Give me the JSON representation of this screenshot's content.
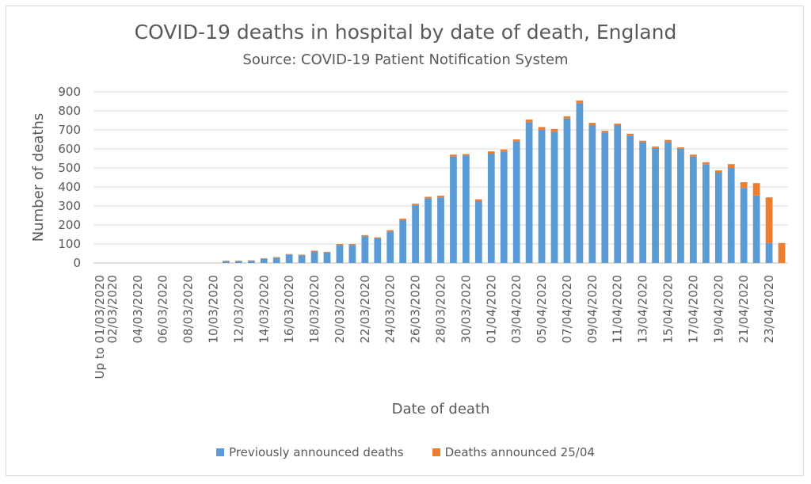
{
  "chart_data": {
    "type": "bar",
    "stacked": true,
    "title": "COVID-19 deaths in hospital by date of death, England",
    "subtitle": "Source: COVID-19 Patient Notification System",
    "xlabel": "Date of death",
    "ylabel": "Number of deaths",
    "ylim": [
      0,
      900
    ],
    "yticks": [
      0,
      100,
      200,
      300,
      400,
      500,
      600,
      700,
      800,
      900
    ],
    "grid": true,
    "legend_position": "bottom",
    "categories": [
      "Up to  01/03/2020",
      "02/03/2020",
      "03/03/2020",
      "04/03/2020",
      "05/03/2020",
      "06/03/2020",
      "07/03/2020",
      "08/03/2020",
      "09/03/2020",
      "10/03/2020",
      "11/03/2020",
      "12/03/2020",
      "13/03/2020",
      "14/03/2020",
      "15/03/2020",
      "16/03/2020",
      "17/03/2020",
      "18/03/2020",
      "19/03/2020",
      "20/03/2020",
      "21/03/2020",
      "22/03/2020",
      "23/03/2020",
      "24/03/2020",
      "25/03/2020",
      "26/03/2020",
      "27/03/2020",
      "28/03/2020",
      "29/03/2020",
      "30/03/2020",
      "31/03/2020",
      "01/04/2020",
      "02/04/2020",
      "03/04/2020",
      "04/04/2020",
      "05/04/2020",
      "06/04/2020",
      "07/04/2020",
      "08/04/2020",
      "09/04/2020",
      "10/04/2020",
      "11/04/2020",
      "12/04/2020",
      "13/04/2020",
      "14/04/2020",
      "15/04/2020",
      "16/04/2020",
      "17/04/2020",
      "18/04/2020",
      "19/04/2020",
      "20/04/2020",
      "21/04/2020",
      "22/04/2020",
      "23/04/2020",
      "24/04/2020"
    ],
    "tick_labels_shown": [
      "Up to  01/03/2020",
      "02/03/2020",
      "04/03/2020",
      "06/03/2020",
      "08/03/2020",
      "10/03/2020",
      "12/03/2020",
      "14/03/2020",
      "16/03/2020",
      "18/03/2020",
      "20/03/2020",
      "22/03/2020",
      "24/03/2020",
      "26/03/2020",
      "28/03/2020",
      "30/03/2020",
      "01/04/2020",
      "03/04/2020",
      "05/04/2020",
      "07/04/2020",
      "09/04/2020",
      "11/04/2020",
      "13/04/2020",
      "15/04/2020",
      "17/04/2020",
      "19/04/2020",
      "21/04/2020",
      "23/04/2020"
    ],
    "series": [
      {
        "name": "Previously announced deaths",
        "color": "#5b9bd5",
        "values": [
          0,
          0,
          0,
          0,
          0,
          0,
          0,
          0,
          0,
          0,
          10,
          10,
          12,
          22,
          28,
          45,
          40,
          60,
          55,
          95,
          95,
          140,
          130,
          165,
          225,
          305,
          340,
          345,
          560,
          565,
          325,
          575,
          585,
          640,
          740,
          700,
          690,
          760,
          840,
          725,
          685,
          725,
          670,
          635,
          605,
          635,
          600,
          560,
          520,
          475,
          500,
          395,
          355,
          105,
          0
        ]
      },
      {
        "name": "Deaths announced 25/04",
        "color": "#ed7d31",
        "values": [
          0,
          0,
          0,
          0,
          0,
          0,
          0,
          0,
          0,
          0,
          2,
          2,
          2,
          3,
          3,
          2,
          4,
          5,
          4,
          5,
          5,
          6,
          5,
          8,
          8,
          7,
          8,
          9,
          10,
          8,
          10,
          12,
          12,
          10,
          15,
          15,
          15,
          12,
          15,
          12,
          10,
          8,
          10,
          8,
          8,
          12,
          8,
          10,
          10,
          12,
          20,
          30,
          65,
          240,
          105
        ]
      }
    ]
  }
}
